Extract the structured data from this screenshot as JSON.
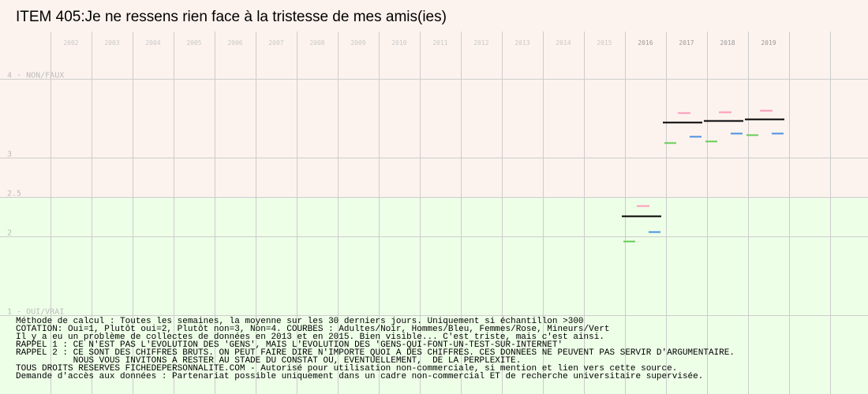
{
  "chart_data": {
    "type": "scatter",
    "title": "ITEM 405:Je ne ressens rien face à la tristesse de mes amis(ies)",
    "x_categories": [
      "2002",
      "2003",
      "2004",
      "2005",
      "2006",
      "2007",
      "2008",
      "2009",
      "2010",
      "2011",
      "2012",
      "2013",
      "2014",
      "2015",
      "2016",
      "2017",
      "2018",
      "2019"
    ],
    "y_ticks": [
      {
        "value": 4,
        "label": "4 - NON/FAUX"
      },
      {
        "value": 3,
        "label": "3"
      },
      {
        "value": 2.5,
        "label": "2.5"
      },
      {
        "value": 2,
        "label": "2"
      },
      {
        "value": 1,
        "label": "1 - OUI/VRAI"
      }
    ],
    "ylim": [
      1,
      4
    ],
    "grid": true,
    "bands": [
      {
        "from": 2.5,
        "to": 4,
        "color": "#fdf3ee"
      },
      {
        "from": 1,
        "to": 2.5,
        "color": "#eeffe8"
      }
    ],
    "series": [
      {
        "name": "Adultes",
        "color": "#000000",
        "points": [
          {
            "x": "2016",
            "y": 2.26
          },
          {
            "x": "2017",
            "y": 3.45
          },
          {
            "x": "2018",
            "y": 3.47
          },
          {
            "x": "2019",
            "y": 3.49
          }
        ]
      },
      {
        "name": "Femmes",
        "color": "#ff99bb",
        "points": [
          {
            "x": "2016",
            "y": 2.39
          },
          {
            "x": "2017",
            "y": 3.57
          },
          {
            "x": "2018",
            "y": 3.58
          },
          {
            "x": "2019",
            "y": 3.6
          }
        ]
      },
      {
        "name": "Hommes",
        "color": "#4a90e2",
        "points": [
          {
            "x": "2016",
            "y": 2.06
          },
          {
            "x": "2017",
            "y": 3.27
          },
          {
            "x": "2018",
            "y": 3.31
          },
          {
            "x": "2019",
            "y": 3.31
          }
        ]
      },
      {
        "name": "Mineurs",
        "color": "#66cc55",
        "points": [
          {
            "x": "2016",
            "y": 1.94
          },
          {
            "x": "2017",
            "y": 3.19
          },
          {
            "x": "2018",
            "y": 3.21
          },
          {
            "x": "2019",
            "y": 3.29
          }
        ]
      }
    ]
  },
  "notes": [
    "Méthode de calcul : Toutes les semaines, la moyenne sur les 30 derniers jours. Uniquement si échantillon >300",
    "COTATION: Oui=1, Plutôt oui=2, Plutôt non=3, Non=4. COURBES : Adultes/Noir, Hommes/Bleu, Femmes/Rose, Mineurs/Vert",
    "Il y a eu un problème de collectes de données en 2013 et en 2015. Bien visible... C'est triste, mais c'est ainsi.",
    "RAPPEL 1 : CE N'EST PAS L'EVOLUTION DES 'GENS', MAIS L'EVOLUTION DES 'GENS-QUI-FONT-UN-TEST-SUR-INTERNET'",
    "RAPPEL 2 : CE SONT DES CHIFFRES BRUTS. ON PEUT FAIRE DIRE N'IMPORTE QUOI A DES CHIFFRES. CES DONNEES NE PEUVENT PAS SERVIR D'ARGUMENTAIRE.",
    "           NOUS VOUS INVITONS A RESTER AU STADE DU CONSTAT OU, EVENTUELLEMENT,  DE LA PERPLEXITE.",
    "TOUS DROITS RESERVES FICHEDEPERSONNALITE.COM - Autorisé pour utilisation non-commerciale, si mention et lien vers cette source.",
    "Demande d'accès aux données : Partenariat possible uniquement dans un cadre non-commercial ET de recherche universitaire supervisée."
  ]
}
